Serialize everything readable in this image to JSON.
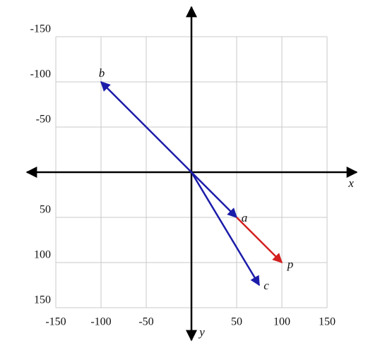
{
  "chart_data": {
    "type": "vector",
    "x_label": "x",
    "y_label": "y",
    "xlim": [
      -150,
      150
    ],
    "ylim": [
      -150,
      150
    ],
    "y_inverted": true,
    "xticks": [
      -150,
      -100,
      -50,
      50,
      100,
      150
    ],
    "yticks": [
      -150,
      -100,
      -50,
      50,
      100,
      150
    ],
    "grid": true,
    "vectors": [
      {
        "name": "a",
        "color": "#1c1caa",
        "start": [
          0,
          0
        ],
        "end": [
          50,
          50
        ]
      },
      {
        "name": "b",
        "color": "#1c1caa",
        "start": [
          0,
          0
        ],
        "end": [
          -100,
          -100
        ]
      },
      {
        "name": "c",
        "color": "#1c1caa",
        "start": [
          0,
          0
        ],
        "end": [
          75,
          125
        ]
      },
      {
        "name": "p",
        "color": "#d42020",
        "start": [
          50,
          50
        ],
        "end": [
          100,
          100
        ]
      }
    ]
  }
}
